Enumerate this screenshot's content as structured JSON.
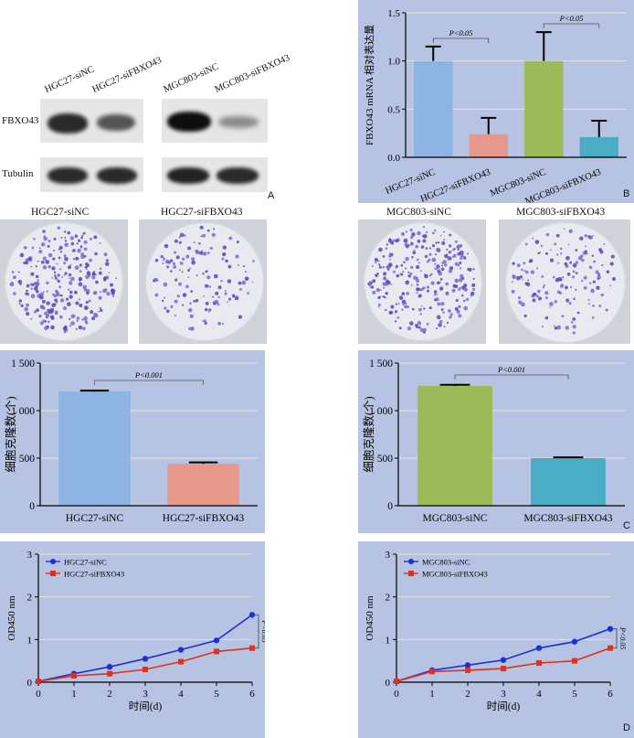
{
  "panelA": {
    "letter": "A",
    "lanes": [
      "HGC27-siNC",
      "HGC27-siFBXO43",
      "MGC803-siNC",
      "MGC803-siFBXO43"
    ],
    "row_labels": [
      "FBXO43",
      "Tubulin"
    ]
  },
  "panelB": {
    "letter": "B",
    "chart_data": {
      "type": "bar",
      "categories": [
        "HGC27-siNC",
        "HGC27-siFBXO43",
        "MGC803-siNC",
        "MGC803-siFBXO43"
      ],
      "values": [
        1.0,
        0.24,
        1.0,
        0.21
      ],
      "errors": [
        0.15,
        0.17,
        0.3,
        0.17
      ],
      "colors": [
        "#8db4e2",
        "#e6998a",
        "#9bbb59",
        "#4bacc6"
      ],
      "ylabel": "FBXO43 mRNA 相对表达量",
      "yticks": [
        "0.0",
        "0.5",
        "1.0",
        "1.5"
      ],
      "ylim": [
        0,
        1.5
      ],
      "significance": [
        "P<0.05",
        "P<0.05"
      ]
    }
  },
  "panelC": {
    "letter": "C",
    "dish_titles": [
      "HGC27-siNC",
      "HGC27-siFBXO43",
      "MGC803-siNC",
      "MGC803-siFBXO43"
    ],
    "chart_data": [
      {
        "type": "bar",
        "categories": [
          "HGC27-siNC",
          "HGC27-siFBXO43"
        ],
        "values": [
          1200,
          440
        ],
        "errors": [
          10,
          15
        ],
        "colors": [
          "#8db4e2",
          "#e6998a"
        ],
        "ylabel": "细胞克隆数(个)",
        "yticks": [
          "0",
          "500",
          "1 000",
          "1 500"
        ],
        "ylim": [
          0,
          1500
        ],
        "significance": "P<0.001"
      },
      {
        "type": "bar",
        "categories": [
          "MGC803-siNC",
          "MGC803-siFBXO43"
        ],
        "values": [
          1260,
          500
        ],
        "errors": [
          12,
          8
        ],
        "colors": [
          "#9bbb59",
          "#4bacc6"
        ],
        "ylabel": "细胞克隆数(个)",
        "yticks": [
          "0",
          "500",
          "1 000",
          "1 500"
        ],
        "ylim": [
          0,
          1500
        ],
        "significance": "P<0.001"
      }
    ]
  },
  "panelD": {
    "letter": "D",
    "chart_data": [
      {
        "type": "line",
        "x": [
          0,
          1,
          2,
          3,
          4,
          5,
          6
        ],
        "series": [
          {
            "name": "HGC27-siNC",
            "color": "#1f2fd6",
            "values": [
              0.02,
              0.2,
              0.36,
              0.55,
              0.76,
              0.98,
              1.58
            ]
          },
          {
            "name": "HGC27-siFBXO43",
            "color": "#e0301e",
            "values": [
              0.02,
              0.15,
              0.2,
              0.3,
              0.48,
              0.72,
              0.8
            ]
          }
        ],
        "ylabel": "OD450 nm",
        "xlabel": "时间(d)",
        "ylim": [
          0,
          3
        ],
        "xlim": [
          0,
          6
        ],
        "xticks": [
          "0",
          "1",
          "2",
          "3",
          "4",
          "5",
          "6"
        ],
        "yticks": [
          "0",
          "1",
          "2",
          "3"
        ],
        "significance": "P<0.05"
      },
      {
        "type": "line",
        "x": [
          0,
          1,
          2,
          3,
          4,
          5,
          6
        ],
        "series": [
          {
            "name": "MGC803-siNC",
            "color": "#1f2fd6",
            "values": [
              0.02,
              0.28,
              0.4,
              0.52,
              0.8,
              0.95,
              1.25
            ]
          },
          {
            "name": "MGC803-siFBXO43",
            "color": "#e0301e",
            "values": [
              0.02,
              0.25,
              0.28,
              0.32,
              0.45,
              0.5,
              0.8
            ]
          }
        ],
        "ylabel": "OD450 nm",
        "xlabel": "时间(d)",
        "ylim": [
          0,
          3
        ],
        "xlim": [
          0,
          6
        ],
        "xticks": [
          "0",
          "1",
          "2",
          "3",
          "4",
          "5",
          "6"
        ],
        "yticks": [
          "0",
          "1",
          "2",
          "3"
        ],
        "significance": "P<0.05"
      }
    ]
  }
}
